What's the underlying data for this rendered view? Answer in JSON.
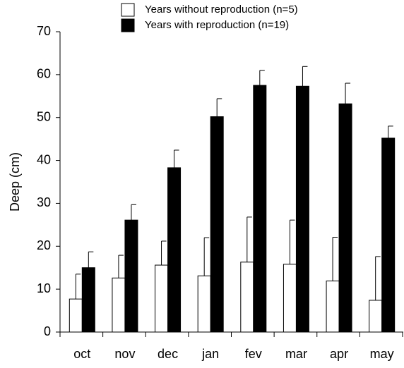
{
  "chart_data": {
    "type": "bar",
    "y_label": "Deep (cm)",
    "categories": [
      "oct",
      "nov",
      "dec",
      "jan",
      "fev",
      "mar",
      "apr",
      "may"
    ],
    "series": [
      {
        "name": "Years without reproduction (n=5)",
        "color": "#ffffff",
        "values": [
          7.7,
          12.6,
          15.6,
          13.1,
          16.3,
          15.8,
          11.9,
          7.4
        ],
        "errors": [
          5.8,
          5.3,
          5.6,
          8.9,
          10.5,
          10.3,
          10.2,
          10.2
        ]
      },
      {
        "name": "Years with reproduction (n=19)",
        "color": "#000000",
        "values": [
          15.0,
          26.1,
          38.3,
          50.2,
          57.5,
          57.3,
          53.2,
          45.2
        ],
        "errors": [
          3.7,
          3.6,
          4.1,
          4.2,
          3.5,
          4.6,
          4.8,
          2.8
        ]
      }
    ],
    "ylim": [
      0,
      70
    ],
    "yticks": [
      0,
      10,
      20,
      30,
      40,
      50,
      60,
      70
    ],
    "legend": "top"
  }
}
